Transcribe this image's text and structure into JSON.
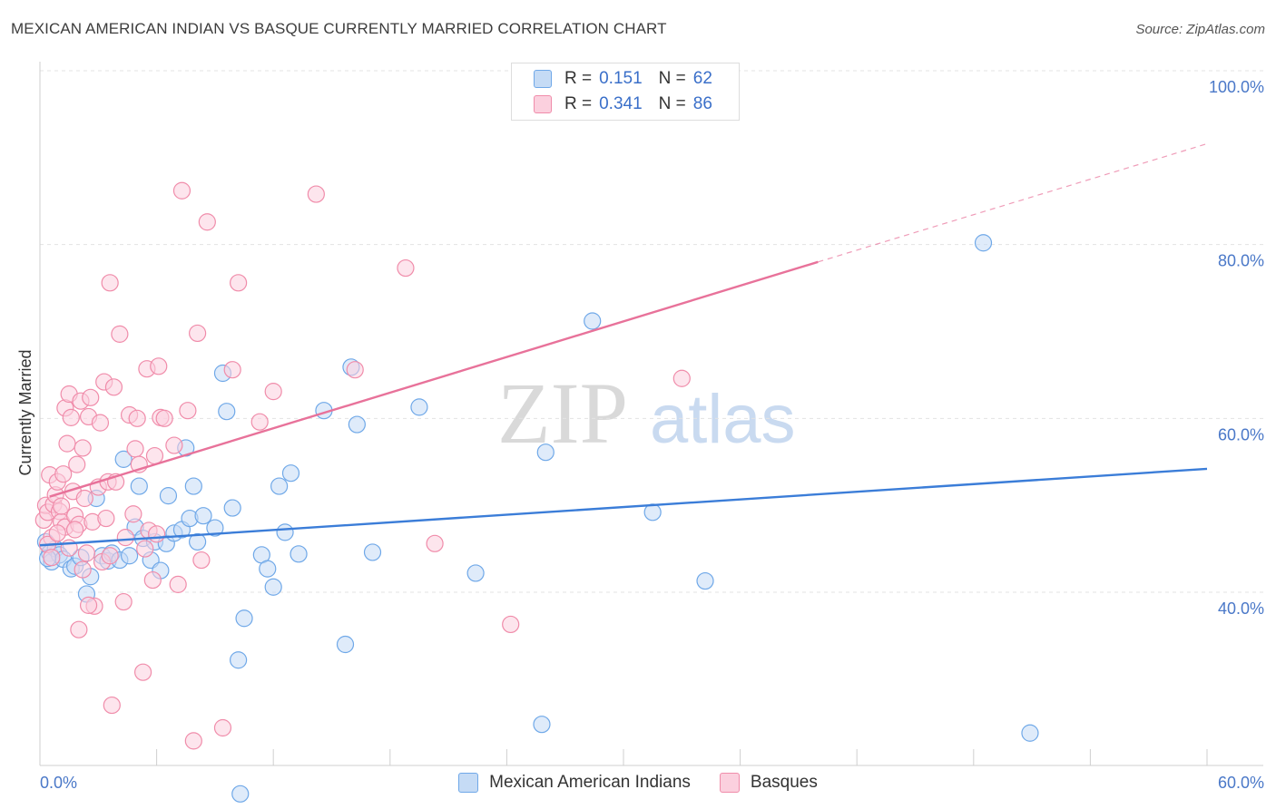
{
  "title": "MEXICAN AMERICAN INDIAN VS BASQUE CURRENTLY MARRIED CORRELATION CHART",
  "source": "Source: ZipAtlas.com",
  "watermark": {
    "zip": "ZIP",
    "atlas": "atlas"
  },
  "legend_top": [
    {
      "name": "Mexican American Indians",
      "r_label": "R =",
      "r_value": "0.151",
      "n_label": "N =",
      "n_value": "62",
      "color": "#6fa8e8",
      "fill": "#c5dbf5"
    },
    {
      "name": "Basques",
      "r_label": "R =",
      "r_value": "0.341",
      "n_label": "N =",
      "n_value": "86",
      "color": "#f08caa",
      "fill": "#fbd0de"
    }
  ],
  "legend_bottom": [
    {
      "label": "Mexican American Indians",
      "color": "#6fa8e8",
      "fill": "#c5dbf5"
    },
    {
      "label": "Basques",
      "color": "#f08caa",
      "fill": "#fbd0de"
    }
  ],
  "chart_data": {
    "type": "scatter",
    "title": "MEXICAN AMERICAN INDIAN VS BASQUE CURRENTLY MARRIED CORRELATION CHART",
    "xlabel": "",
    "ylabel": "Currently Married",
    "xlim": [
      0,
      60
    ],
    "ylim": [
      14,
      104
    ],
    "x_tick_labels": [
      "0.0%",
      "60.0%"
    ],
    "y_ticks": [
      40,
      60,
      80,
      100
    ],
    "y_tick_labels": [
      "40.0%",
      "60.0%",
      "80.0%",
      "100.0%"
    ],
    "grid": true,
    "series": [
      {
        "name": "Mexican American Indians",
        "color": "#3b7dd8",
        "trend": {
          "x": [
            0,
            60
          ],
          "y": [
            45.4,
            54.2
          ],
          "dashed_to": null
        },
        "points": [
          [
            0.3,
            45.8
          ],
          [
            0.5,
            44.5
          ],
          [
            0.6,
            43.5
          ],
          [
            0.8,
            45.0
          ],
          [
            1.0,
            44.3
          ],
          [
            1.2,
            43.8
          ],
          [
            1.6,
            42.7
          ],
          [
            1.8,
            43.0
          ],
          [
            2.1,
            44.0
          ],
          [
            2.4,
            39.8
          ],
          [
            2.6,
            41.8
          ],
          [
            2.9,
            50.8
          ],
          [
            3.2,
            44.2
          ],
          [
            3.5,
            43.6
          ],
          [
            3.7,
            44.5
          ],
          [
            4.1,
            43.7
          ],
          [
            4.3,
            55.3
          ],
          [
            4.6,
            44.2
          ],
          [
            4.9,
            47.5
          ],
          [
            5.1,
            52.2
          ],
          [
            5.3,
            46.2
          ],
          [
            5.7,
            43.7
          ],
          [
            5.9,
            45.8
          ],
          [
            6.2,
            42.5
          ],
          [
            6.5,
            45.6
          ],
          [
            6.6,
            51.1
          ],
          [
            6.9,
            46.8
          ],
          [
            7.3,
            47.2
          ],
          [
            7.5,
            56.6
          ],
          [
            7.7,
            48.5
          ],
          [
            7.9,
            52.2
          ],
          [
            8.1,
            45.8
          ],
          [
            8.4,
            48.8
          ],
          [
            9.0,
            47.4
          ],
          [
            9.4,
            65.2
          ],
          [
            9.6,
            60.8
          ],
          [
            9.9,
            49.7
          ],
          [
            10.2,
            32.2
          ],
          [
            10.5,
            37.0
          ],
          [
            10.3,
            16.8
          ],
          [
            11.4,
            44.3
          ],
          [
            11.7,
            42.7
          ],
          [
            12.0,
            40.6
          ],
          [
            12.3,
            52.2
          ],
          [
            12.6,
            46.9
          ],
          [
            12.9,
            53.7
          ],
          [
            13.3,
            44.4
          ],
          [
            14.6,
            60.9
          ],
          [
            15.7,
            34.0
          ],
          [
            16.0,
            65.9
          ],
          [
            16.3,
            59.3
          ],
          [
            17.1,
            44.6
          ],
          [
            19.5,
            61.3
          ],
          [
            22.4,
            42.2
          ],
          [
            25.8,
            24.8
          ],
          [
            26.0,
            56.1
          ],
          [
            28.4,
            71.2
          ],
          [
            31.5,
            49.2
          ],
          [
            34.2,
            41.3
          ],
          [
            48.5,
            80.2
          ],
          [
            50.9,
            23.8
          ],
          [
            0.4,
            43.9
          ]
        ]
      },
      {
        "name": "Basques",
        "color": "#e8729a",
        "trend": {
          "x": [
            0.5,
            40.0
          ],
          "y": [
            51.0,
            78.0
          ],
          "dashed_to": [
            60,
            91.6
          ]
        },
        "points": [
          [
            0.2,
            48.3
          ],
          [
            0.3,
            50.0
          ],
          [
            0.4,
            49.2
          ],
          [
            0.5,
            53.5
          ],
          [
            0.6,
            46.3
          ],
          [
            0.7,
            50.1
          ],
          [
            0.8,
            51.2
          ],
          [
            0.9,
            52.7
          ],
          [
            1.0,
            49.3
          ],
          [
            1.1,
            48.1
          ],
          [
            1.2,
            53.6
          ],
          [
            1.3,
            47.5
          ],
          [
            1.3,
            61.2
          ],
          [
            1.4,
            57.1
          ],
          [
            1.5,
            62.8
          ],
          [
            1.6,
            60.1
          ],
          [
            1.7,
            51.6
          ],
          [
            1.8,
            48.8
          ],
          [
            1.9,
            54.7
          ],
          [
            2.0,
            47.8
          ],
          [
            2.1,
            62.0
          ],
          [
            2.2,
            56.6
          ],
          [
            2.3,
            50.8
          ],
          [
            2.4,
            44.5
          ],
          [
            2.5,
            60.2
          ],
          [
            2.6,
            62.4
          ],
          [
            2.7,
            48.1
          ],
          [
            2.8,
            38.4
          ],
          [
            3.0,
            52.1
          ],
          [
            3.1,
            59.5
          ],
          [
            3.3,
            64.2
          ],
          [
            3.4,
            48.5
          ],
          [
            3.5,
            52.7
          ],
          [
            3.6,
            75.6
          ],
          [
            3.7,
            27.0
          ],
          [
            3.8,
            63.6
          ],
          [
            3.9,
            52.7
          ],
          [
            4.1,
            69.7
          ],
          [
            4.3,
            38.9
          ],
          [
            4.6,
            60.4
          ],
          [
            4.8,
            49.0
          ],
          [
            4.9,
            56.5
          ],
          [
            5.0,
            60.0
          ],
          [
            5.1,
            54.7
          ],
          [
            5.3,
            30.8
          ],
          [
            5.5,
            65.7
          ],
          [
            5.6,
            47.1
          ],
          [
            5.8,
            41.4
          ],
          [
            5.9,
            55.7
          ],
          [
            6.1,
            66.0
          ],
          [
            6.2,
            60.1
          ],
          [
            6.4,
            60.0
          ],
          [
            6.9,
            56.9
          ],
          [
            7.3,
            86.2
          ],
          [
            7.6,
            60.9
          ],
          [
            7.9,
            22.9
          ],
          [
            8.1,
            69.8
          ],
          [
            8.6,
            82.6
          ],
          [
            9.4,
            24.4
          ],
          [
            9.9,
            65.6
          ],
          [
            10.2,
            75.6
          ],
          [
            11.3,
            59.6
          ],
          [
            12.0,
            63.1
          ],
          [
            14.2,
            85.8
          ],
          [
            16.2,
            65.6
          ],
          [
            18.8,
            77.3
          ],
          [
            20.3,
            45.6
          ],
          [
            24.2,
            36.3
          ],
          [
            33.0,
            64.6
          ],
          [
            34.5,
            98.8
          ],
          [
            0.4,
            45.5
          ],
          [
            0.6,
            44.0
          ],
          [
            0.9,
            46.8
          ],
          [
            1.1,
            49.9
          ],
          [
            1.5,
            45.1
          ],
          [
            1.8,
            47.2
          ],
          [
            2.0,
            35.7
          ],
          [
            2.2,
            42.6
          ],
          [
            2.5,
            38.5
          ],
          [
            3.2,
            43.5
          ],
          [
            3.6,
            44.2
          ],
          [
            4.4,
            46.3
          ],
          [
            5.4,
            45.0
          ],
          [
            6.0,
            46.7
          ],
          [
            7.1,
            40.9
          ],
          [
            8.3,
            43.7
          ]
        ]
      }
    ]
  }
}
